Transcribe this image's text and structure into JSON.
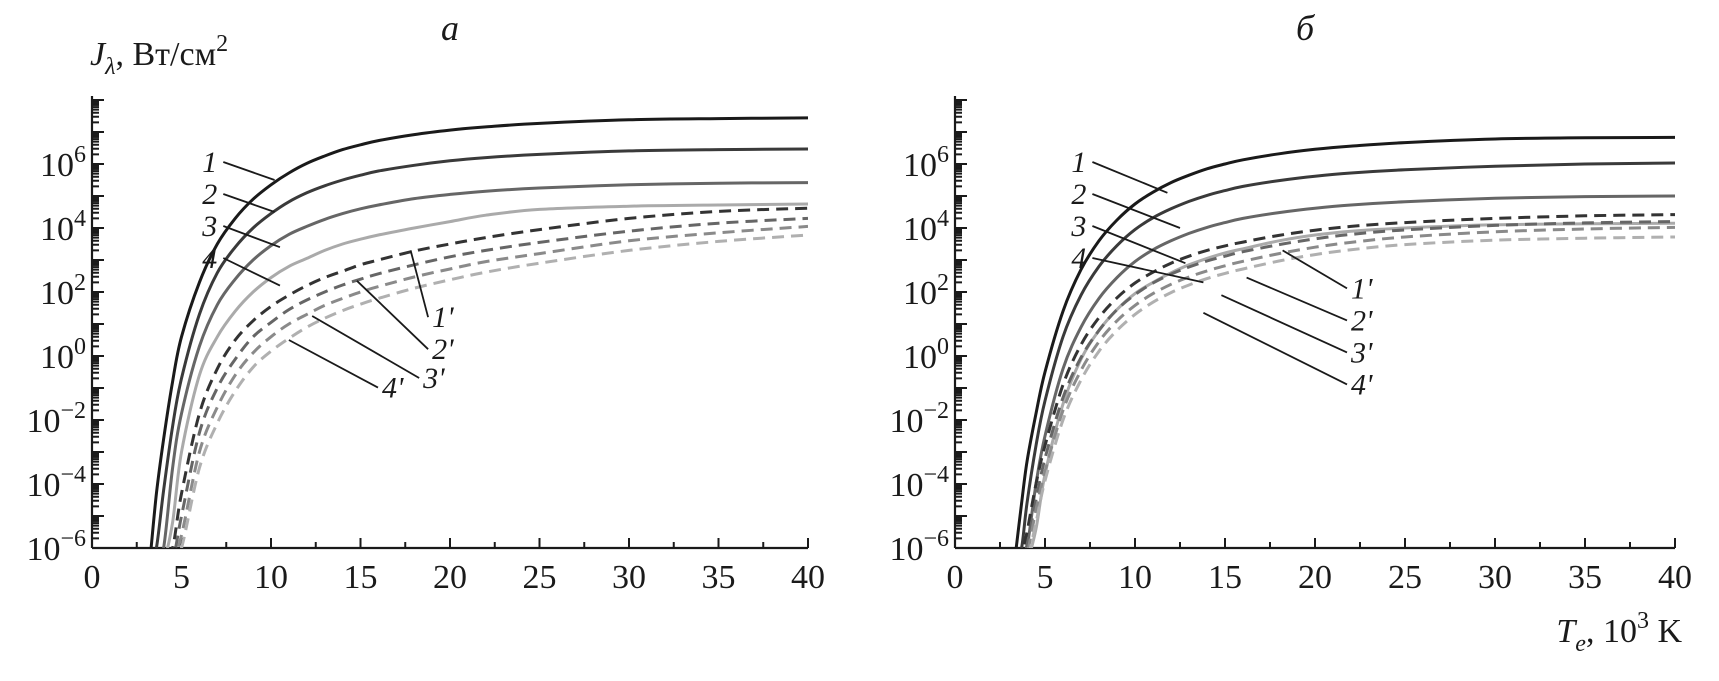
{
  "y_axis_title": {
    "symbol": "J",
    "subscript": "λ",
    "unit": ", Вт/см",
    "unit_sup": "2"
  },
  "x_axis_title": {
    "symbol": "T",
    "subscript": "e",
    "unit": ", 10",
    "unit_sup": "3",
    "unit_tail": " K"
  },
  "chart_data": [
    {
      "type": "line",
      "panel": "а",
      "xlim": [
        0,
        40
      ],
      "ylim_log10": [
        -6,
        8
      ],
      "y_scale": "log",
      "x_ticks": [
        "0",
        "5",
        "10",
        "15",
        "20",
        "25",
        "30",
        "35",
        "40"
      ],
      "y_ticks": [
        {
          "base": "10",
          "exp": "6",
          "log": 6
        },
        {
          "base": "10",
          "exp": "4",
          "log": 4
        },
        {
          "base": "10",
          "exp": "2",
          "log": 2
        },
        {
          "base": "10",
          "exp": "0",
          "log": 0
        },
        {
          "base": "10",
          "exp": "−2",
          "log": -2
        },
        {
          "base": "10",
          "exp": "−4",
          "log": -4
        },
        {
          "base": "10",
          "exp": "−6",
          "log": -6
        }
      ],
      "x": [
        3.3,
        3.6,
        4,
        4.5,
        5,
        6,
        7,
        8,
        9,
        10,
        11,
        12,
        13,
        14,
        15,
        16,
        18,
        20,
        22,
        25,
        30,
        35,
        40
      ],
      "series": [
        {
          "name": "1",
          "style": "solid",
          "color": "#1a1a1a",
          "log10_y": [
            -6.0,
            -4.3,
            -2.6,
            -0.8,
            0.6,
            2.3,
            3.5,
            4.3,
            4.9,
            5.35,
            5.72,
            6.02,
            6.25,
            6.45,
            6.6,
            6.73,
            6.92,
            7.06,
            7.16,
            7.27,
            7.38,
            7.42,
            7.44
          ]
        },
        {
          "name": "2",
          "style": "solid",
          "color": "#3a3a3a",
          "log10_y": [
            -6.4,
            -6.0,
            -4.2,
            -2.2,
            -0.7,
            1.3,
            2.6,
            3.4,
            4.0,
            4.45,
            4.82,
            5.1,
            5.32,
            5.5,
            5.65,
            5.78,
            5.96,
            6.1,
            6.2,
            6.3,
            6.41,
            6.45,
            6.47
          ]
        },
        {
          "name": "3",
          "style": "solid",
          "color": "#666666",
          "log10_y": [
            -6.4,
            -6.4,
            -6.0,
            -3.5,
            -1.8,
            0.3,
            1.6,
            2.4,
            3.0,
            3.45,
            3.8,
            4.05,
            4.27,
            4.45,
            4.6,
            4.72,
            4.92,
            5.05,
            5.15,
            5.25,
            5.35,
            5.4,
            5.42
          ]
        },
        {
          "name": "4",
          "style": "solid",
          "color": "#aaaaaa",
          "log10_y": [
            -6.4,
            -6.4,
            -6.4,
            -5.2,
            -3.0,
            -0.6,
            0.6,
            1.4,
            2.0,
            2.45,
            2.8,
            3.05,
            3.3,
            3.5,
            3.65,
            3.78,
            4.0,
            4.2,
            4.4,
            4.58,
            4.68,
            4.72,
            4.75
          ]
        },
        {
          "name": "1'",
          "style": "dashed",
          "color": "#333333",
          "log10_y": [
            -6.4,
            -6.4,
            -6.4,
            -6.0,
            -4.3,
            -1.8,
            -0.4,
            0.5,
            1.1,
            1.55,
            1.9,
            2.2,
            2.45,
            2.65,
            2.85,
            3.0,
            3.28,
            3.5,
            3.7,
            3.95,
            4.3,
            4.52,
            4.62
          ]
        },
        {
          "name": "2'",
          "style": "dashed",
          "color": "#666666",
          "log10_y": [
            -6.4,
            -6.4,
            -6.4,
            -6.4,
            -5.0,
            -2.4,
            -1.0,
            -0.1,
            0.6,
            1.05,
            1.45,
            1.75,
            2.0,
            2.22,
            2.4,
            2.57,
            2.85,
            3.1,
            3.3,
            3.55,
            3.9,
            4.15,
            4.3
          ]
        },
        {
          "name": "3'",
          "style": "dashed",
          "color": "#8a8a8a",
          "log10_y": [
            -6.4,
            -6.4,
            -6.4,
            -6.4,
            -5.6,
            -3.0,
            -1.6,
            -0.6,
            0.1,
            0.6,
            1.0,
            1.3,
            1.58,
            1.8,
            2.0,
            2.17,
            2.47,
            2.72,
            2.95,
            3.2,
            3.6,
            3.85,
            4.05
          ]
        },
        {
          "name": "4'",
          "style": "dashed",
          "color": "#b0b0b0",
          "log10_y": [
            -6.4,
            -6.4,
            -6.4,
            -6.4,
            -6.0,
            -3.5,
            -2.1,
            -1.1,
            -0.35,
            0.15,
            0.55,
            0.9,
            1.18,
            1.42,
            1.62,
            1.8,
            2.12,
            2.38,
            2.62,
            2.9,
            3.3,
            3.58,
            3.78
          ]
        }
      ],
      "labels": [
        {
          "text": "1",
          "tx": 7.0,
          "ty": 5.75,
          "px": 10.2,
          "py": 5.5,
          "anchor": "end"
        },
        {
          "text": "2",
          "tx": 7.0,
          "ty": 4.75,
          "px": 10.2,
          "py": 4.5,
          "anchor": "end"
        },
        {
          "text": "3",
          "tx": 7.0,
          "ty": 3.75,
          "px": 10.5,
          "py": 3.4,
          "anchor": "end"
        },
        {
          "text": "4",
          "tx": 7.0,
          "ty": 2.75,
          "px": 10.5,
          "py": 2.2,
          "anchor": "end"
        },
        {
          "text": "1'",
          "tx": 19.0,
          "ty": 0.9,
          "px": 17.8,
          "py": 3.3,
          "anchor": "start"
        },
        {
          "text": "2'",
          "tx": 19.0,
          "ty": -0.1,
          "px": 14.8,
          "py": 2.35,
          "anchor": "start"
        },
        {
          "text": "3'",
          "tx": 18.5,
          "ty": -1.0,
          "px": 12.3,
          "py": 1.25,
          "anchor": "start"
        },
        {
          "text": "4'",
          "tx": 16.2,
          "ty": -1.3,
          "px": 11.0,
          "py": 0.5,
          "anchor": "start"
        }
      ]
    },
    {
      "type": "line",
      "panel": "б",
      "xlim": [
        0,
        40
      ],
      "ylim_log10": [
        -6,
        8
      ],
      "y_scale": "log",
      "x_ticks": [
        "0",
        "5",
        "10",
        "15",
        "20",
        "25",
        "30",
        "35",
        "40"
      ],
      "y_ticks": [
        {
          "base": "10",
          "exp": "6",
          "log": 6
        },
        {
          "base": "10",
          "exp": "4",
          "log": 4
        },
        {
          "base": "10",
          "exp": "2",
          "log": 2
        },
        {
          "base": "10",
          "exp": "0",
          "log": 0
        },
        {
          "base": "10",
          "exp": "−2",
          "log": -2
        },
        {
          "base": "10",
          "exp": "−4",
          "log": -4
        },
        {
          "base": "10",
          "exp": "−6",
          "log": -6
        }
      ],
      "x": [
        3.4,
        3.7,
        4,
        4.5,
        5,
        6,
        7,
        8,
        9,
        10,
        11,
        12,
        13,
        14,
        15,
        16,
        18,
        20,
        22,
        25,
        30,
        35,
        40
      ],
      "series": [
        {
          "name": "1",
          "style": "solid",
          "color": "#1a1a1a",
          "log10_y": [
            -6.0,
            -4.6,
            -3.3,
            -1.8,
            -0.5,
            1.4,
            2.7,
            3.6,
            4.25,
            4.75,
            5.12,
            5.42,
            5.65,
            5.85,
            6.0,
            6.13,
            6.32,
            6.46,
            6.56,
            6.67,
            6.78,
            6.82,
            6.83
          ]
        },
        {
          "name": "2",
          "style": "solid",
          "color": "#3a3a3a",
          "log10_y": [
            -6.4,
            -6.0,
            -4.6,
            -2.8,
            -1.4,
            0.6,
            1.9,
            2.8,
            3.45,
            3.95,
            4.32,
            4.6,
            4.83,
            5.02,
            5.17,
            5.3,
            5.48,
            5.62,
            5.72,
            5.82,
            5.93,
            6.0,
            6.03
          ]
        },
        {
          "name": "3",
          "style": "solid",
          "color": "#666666",
          "log10_y": [
            -6.4,
            -6.4,
            -6.0,
            -4.0,
            -2.5,
            -0.4,
            0.9,
            1.8,
            2.45,
            2.95,
            3.32,
            3.6,
            3.83,
            4.02,
            4.17,
            4.3,
            4.48,
            4.62,
            4.72,
            4.82,
            4.93,
            4.98,
            5.0
          ]
        },
        {
          "name": "4",
          "style": "solid",
          "color": "#aaaaaa",
          "log10_y": [
            -6.4,
            -6.4,
            -6.4,
            -5.4,
            -3.7,
            -1.5,
            -0.1,
            0.8,
            1.45,
            1.95,
            2.3,
            2.6,
            2.85,
            3.05,
            3.22,
            3.35,
            3.6,
            3.78,
            3.9,
            4.0,
            4.1,
            4.13,
            4.15
          ]
        },
        {
          "name": "1'",
          "style": "dashed",
          "color": "#333333",
          "log10_y": [
            -6.4,
            -6.2,
            -5.5,
            -4.0,
            -2.8,
            -0.9,
            0.35,
            1.2,
            1.82,
            2.28,
            2.62,
            2.9,
            3.12,
            3.3,
            3.44,
            3.56,
            3.77,
            3.93,
            4.05,
            4.17,
            4.3,
            4.38,
            4.42
          ]
        },
        {
          "name": "2'",
          "style": "dashed",
          "color": "#666666",
          "log10_y": [
            -6.4,
            -6.4,
            -5.9,
            -4.5,
            -3.2,
            -1.3,
            -0.05,
            0.8,
            1.45,
            1.92,
            2.28,
            2.56,
            2.78,
            2.97,
            3.12,
            3.26,
            3.48,
            3.66,
            3.8,
            3.94,
            4.08,
            4.16,
            4.2
          ]
        },
        {
          "name": "3'",
          "style": "dashed",
          "color": "#8a8a8a",
          "log10_y": [
            -6.4,
            -6.4,
            -6.2,
            -4.8,
            -3.6,
            -1.7,
            -0.45,
            0.45,
            1.1,
            1.58,
            1.95,
            2.24,
            2.47,
            2.66,
            2.82,
            2.96,
            3.2,
            3.4,
            3.55,
            3.72,
            3.88,
            3.97,
            4.02
          ]
        },
        {
          "name": "4'",
          "style": "dashed",
          "color": "#b0b0b0",
          "log10_y": [
            -6.4,
            -6.4,
            -6.4,
            -5.2,
            -3.9,
            -2.0,
            -0.75,
            0.15,
            0.8,
            1.3,
            1.68,
            1.98,
            2.22,
            2.42,
            2.58,
            2.72,
            2.97,
            3.17,
            3.32,
            3.48,
            3.62,
            3.68,
            3.72
          ]
        }
      ],
      "labels": [
        {
          "text": "1",
          "tx": 7.3,
          "ty": 5.75,
          "px": 11.8,
          "py": 5.1,
          "anchor": "end"
        },
        {
          "text": "2",
          "tx": 7.3,
          "ty": 4.75,
          "px": 12.5,
          "py": 4.0,
          "anchor": "end"
        },
        {
          "text": "3",
          "tx": 7.3,
          "ty": 3.75,
          "px": 12.8,
          "py": 2.9,
          "anchor": "end"
        },
        {
          "text": "4",
          "tx": 7.3,
          "ty": 2.75,
          "px": 13.8,
          "py": 2.3,
          "anchor": "end"
        },
        {
          "text": "1'",
          "tx": 22.0,
          "ty": 1.8,
          "px": 18.2,
          "py": 3.3,
          "anchor": "start"
        },
        {
          "text": "2'",
          "tx": 22.0,
          "ty": 0.8,
          "px": 16.2,
          "py": 2.45,
          "anchor": "start"
        },
        {
          "text": "3'",
          "tx": 22.0,
          "ty": -0.2,
          "px": 14.8,
          "py": 1.9,
          "anchor": "start"
        },
        {
          "text": "4'",
          "tx": 22.0,
          "ty": -1.2,
          "px": 13.8,
          "py": 1.35,
          "anchor": "start"
        }
      ]
    }
  ]
}
